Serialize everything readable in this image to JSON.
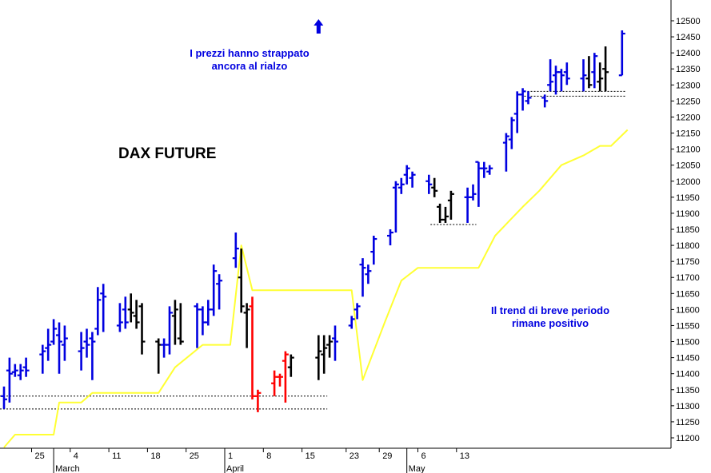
{
  "chart_data": {
    "type": "ohlc",
    "title": "DAX FUTURE",
    "annotations": [
      {
        "id": "top",
        "lines": [
          "I prezzi hanno strappato",
          "ancora al rialzo"
        ]
      },
      {
        "id": "right",
        "lines": [
          "Il trend di breve periodo",
          "rimane positivo"
        ]
      }
    ],
    "arrow": {
      "day": "2017-04-18",
      "direction": "up",
      "price": 12480
    },
    "colors": {
      "up": "#0000e0",
      "neutral": "#000000",
      "down": "#ff0000",
      "trend": "#ffff33",
      "text": "#0000e0"
    },
    "ylim": [
      11170,
      12550
    ],
    "y_ticks": [
      11200,
      11250,
      11300,
      11350,
      11400,
      11450,
      11500,
      11550,
      11600,
      11650,
      11700,
      11750,
      11800,
      11850,
      11900,
      11950,
      12000,
      12050,
      12100,
      12150,
      12200,
      12250,
      12300,
      12350,
      12400,
      12450,
      12500
    ],
    "x_ticks": [
      {
        "date": "2017-02-25",
        "label": "25"
      },
      {
        "date": "2017-03-04",
        "label": "4"
      },
      {
        "date": "2017-03-11",
        "label": "11"
      },
      {
        "date": "2017-03-18",
        "label": "18"
      },
      {
        "date": "2017-03-25",
        "label": "25"
      },
      {
        "date": "2017-04-01",
        "label": "1"
      },
      {
        "date": "2017-04-08",
        "label": "8"
      },
      {
        "date": "2017-04-15",
        "label": "15"
      },
      {
        "date": "2017-04-23",
        "label": "23"
      },
      {
        "date": "2017-04-29",
        "label": "29"
      },
      {
        "date": "2017-05-06",
        "label": "6"
      },
      {
        "date": "2017-05-13",
        "label": "13"
      }
    ],
    "month_labels": [
      {
        "date": "2017-03-01",
        "label": "March"
      },
      {
        "date": "2017-04-01",
        "label": "April"
      },
      {
        "date": "2017-05-04",
        "label": "May"
      }
    ],
    "bars": [
      {
        "d": "2017-02-20",
        "o": 11330,
        "h": 11360,
        "l": 11290,
        "c": 11320,
        "col": "up"
      },
      {
        "d": "2017-02-21",
        "o": 11410,
        "h": 11450,
        "l": 11310,
        "c": 11400,
        "col": "up"
      },
      {
        "d": "2017-02-22",
        "o": 11405,
        "h": 11430,
        "l": 11390,
        "c": 11410,
        "col": "up"
      },
      {
        "d": "2017-02-23",
        "o": 11395,
        "h": 11430,
        "l": 11380,
        "c": 11410,
        "col": "up"
      },
      {
        "d": "2017-02-24",
        "o": 11420,
        "h": 11450,
        "l": 11390,
        "c": 11410,
        "col": "up"
      },
      {
        "d": "2017-02-27",
        "o": 11460,
        "h": 11490,
        "l": 11400,
        "c": 11470,
        "col": "up"
      },
      {
        "d": "2017-02-28",
        "o": 11480,
        "h": 11540,
        "l": 11440,
        "c": 11490,
        "col": "up"
      },
      {
        "d": "2017-03-01",
        "o": 11500,
        "h": 11570,
        "l": 11490,
        "c": 11540,
        "col": "up"
      },
      {
        "d": "2017-03-02",
        "o": 11520,
        "h": 11560,
        "l": 11400,
        "c": 11500,
        "col": "up"
      },
      {
        "d": "2017-03-03",
        "o": 11490,
        "h": 11550,
        "l": 11440,
        "c": 11510,
        "col": "up"
      },
      {
        "d": "2017-03-06",
        "o": 11470,
        "h": 11530,
        "l": 11410,
        "c": 11480,
        "col": "up"
      },
      {
        "d": "2017-03-07",
        "o": 11500,
        "h": 11540,
        "l": 11450,
        "c": 11490,
        "col": "up"
      },
      {
        "d": "2017-03-08",
        "o": 11510,
        "h": 11530,
        "l": 11380,
        "c": 11500,
        "col": "up"
      },
      {
        "d": "2017-03-09",
        "o": 11540,
        "h": 11670,
        "l": 11520,
        "c": 11630,
        "col": "up"
      },
      {
        "d": "2017-03-10",
        "o": 11650,
        "h": 11680,
        "l": 11530,
        "c": 11640,
        "col": "up"
      },
      {
        "d": "2017-03-13",
        "o": 11550,
        "h": 11620,
        "l": 11530,
        "c": 11560,
        "col": "up"
      },
      {
        "d": "2017-03-14",
        "o": 11600,
        "h": 11640,
        "l": 11540,
        "c": 11560,
        "col": "up"
      },
      {
        "d": "2017-03-15",
        "o": 11600,
        "h": 11650,
        "l": 11560,
        "c": 11590,
        "col": "neutral"
      },
      {
        "d": "2017-03-16",
        "o": 11580,
        "h": 11630,
        "l": 11540,
        "c": 11560,
        "col": "neutral"
      },
      {
        "d": "2017-03-17",
        "o": 11610,
        "h": 11620,
        "l": 11460,
        "c": 11500,
        "col": "neutral"
      },
      {
        "d": "2017-03-20",
        "o": 11500,
        "h": 11510,
        "l": 11400,
        "c": 11490,
        "col": "neutral"
      },
      {
        "d": "2017-03-21",
        "o": 11490,
        "h": 11510,
        "l": 11450,
        "c": 11490,
        "col": "up"
      },
      {
        "d": "2017-03-22",
        "o": 11490,
        "h": 11610,
        "l": 11460,
        "c": 11590,
        "col": "up"
      },
      {
        "d": "2017-03-23",
        "o": 11580,
        "h": 11630,
        "l": 11490,
        "c": 11600,
        "col": "neutral"
      },
      {
        "d": "2017-03-24",
        "o": 11510,
        "h": 11620,
        "l": 11490,
        "c": 11500,
        "col": "neutral"
      },
      {
        "d": "2017-03-27",
        "o": 11610,
        "h": 11620,
        "l": 11480,
        "c": 11600,
        "col": "up"
      },
      {
        "d": "2017-03-28",
        "o": 11600,
        "h": 11610,
        "l": 11520,
        "c": 11560,
        "col": "up"
      },
      {
        "d": "2017-03-29",
        "o": 11560,
        "h": 11630,
        "l": 11550,
        "c": 11600,
        "col": "up"
      },
      {
        "d": "2017-03-30",
        "o": 11600,
        "h": 11740,
        "l": 11580,
        "c": 11720,
        "col": "up"
      },
      {
        "d": "2017-03-31",
        "o": 11680,
        "h": 11710,
        "l": 11600,
        "c": 11690,
        "col": "up"
      },
      {
        "d": "2017-04-03",
        "o": 11760,
        "h": 11840,
        "l": 11730,
        "c": 11790,
        "col": "up"
      },
      {
        "d": "2017-04-04",
        "o": 11700,
        "h": 11790,
        "l": 11590,
        "c": 11610,
        "col": "neutral"
      },
      {
        "d": "2017-04-05",
        "o": 11590,
        "h": 11620,
        "l": 11480,
        "c": 11600,
        "col": "neutral"
      },
      {
        "d": "2017-04-06",
        "o": 11610,
        "h": 11640,
        "l": 11320,
        "c": 11330,
        "col": "down"
      },
      {
        "d": "2017-04-07",
        "o": 11330,
        "h": 11350,
        "l": 11280,
        "c": 11340,
        "col": "down"
      },
      {
        "d": "2017-04-10",
        "o": 11370,
        "h": 11410,
        "l": 11330,
        "c": 11390,
        "col": "down"
      },
      {
        "d": "2017-04-11",
        "o": 11390,
        "h": 11400,
        "l": 11360,
        "c": 11390,
        "col": "down"
      },
      {
        "d": "2017-04-12",
        "o": 11440,
        "h": 11470,
        "l": 11310,
        "c": 11460,
        "col": "down"
      },
      {
        "d": "2017-04-13",
        "o": 11420,
        "h": 11460,
        "l": 11390,
        "c": 11450,
        "col": "neutral"
      },
      {
        "d": "2017-04-18",
        "o": 11450,
        "h": 11520,
        "l": 11380,
        "c": 11470,
        "col": "neutral"
      },
      {
        "d": "2017-04-19",
        "o": 11460,
        "h": 11520,
        "l": 11400,
        "c": 11480,
        "col": "neutral"
      },
      {
        "d": "2017-04-20",
        "o": 11490,
        "h": 11520,
        "l": 11450,
        "c": 11500,
        "col": "neutral"
      },
      {
        "d": "2017-04-21",
        "o": 11510,
        "h": 11550,
        "l": 11440,
        "c": 11500,
        "col": "up"
      },
      {
        "d": "2017-04-24",
        "o": 11550,
        "h": 11580,
        "l": 11540,
        "c": 11570,
        "col": "up"
      },
      {
        "d": "2017-04-25",
        "o": 11600,
        "h": 11620,
        "l": 11570,
        "c": 11610,
        "col": "up"
      },
      {
        "d": "2017-04-26",
        "o": 11740,
        "h": 11760,
        "l": 11640,
        "c": 11730,
        "col": "up"
      },
      {
        "d": "2017-04-27",
        "o": 11710,
        "h": 11740,
        "l": 11680,
        "c": 11720,
        "col": "up"
      },
      {
        "d": "2017-04-28",
        "o": 11780,
        "h": 11830,
        "l": 11740,
        "c": 11820,
        "col": "up"
      },
      {
        "d": "2017-05-01",
        "o": 11830,
        "h": 11850,
        "l": 11800,
        "c": 11840,
        "col": "up"
      },
      {
        "d": "2017-05-02",
        "o": 11980,
        "h": 12000,
        "l": 11840,
        "c": 11990,
        "col": "up"
      },
      {
        "d": "2017-05-03",
        "o": 11980,
        "h": 12010,
        "l": 11960,
        "c": 11990,
        "col": "up"
      },
      {
        "d": "2017-05-04",
        "o": 12020,
        "h": 12050,
        "l": 11990,
        "c": 12040,
        "col": "up"
      },
      {
        "d": "2017-05-05",
        "o": 12010,
        "h": 12030,
        "l": 11980,
        "c": 12020,
        "col": "up"
      },
      {
        "d": "2017-05-08",
        "o": 12000,
        "h": 12020,
        "l": 11960,
        "c": 11990,
        "col": "up"
      },
      {
        "d": "2017-05-09",
        "o": 11980,
        "h": 12010,
        "l": 11950,
        "c": 11970,
        "col": "neutral"
      },
      {
        "d": "2017-05-10",
        "o": 11920,
        "h": 11930,
        "l": 11870,
        "c": 11880,
        "col": "neutral"
      },
      {
        "d": "2017-05-11",
        "o": 11880,
        "h": 11920,
        "l": 11870,
        "c": 11890,
        "col": "neutral"
      },
      {
        "d": "2017-05-12",
        "o": 11940,
        "h": 11970,
        "l": 11880,
        "c": 11960,
        "col": "neutral"
      },
      {
        "d": "2017-05-15",
        "o": 11950,
        "h": 11980,
        "l": 11870,
        "c": 11950,
        "col": "up"
      },
      {
        "d": "2017-05-16",
        "o": 11950,
        "h": 11990,
        "l": 11940,
        "c": 11960,
        "col": "up"
      },
      {
        "d": "2017-05-17",
        "o": 12060,
        "h": 12060,
        "l": 11920,
        "c": 12040,
        "col": "up"
      },
      {
        "d": "2017-05-18",
        "o": 12040,
        "h": 12060,
        "l": 12010,
        "c": 12040,
        "col": "up"
      },
      {
        "d": "2017-05-19",
        "o": 12030,
        "h": 12050,
        "l": 12020,
        "c": 12040,
        "col": "up"
      },
      {
        "d": "2017-05-22",
        "o": 12120,
        "h": 12150,
        "l": 12030,
        "c": 12140,
        "col": "up"
      },
      {
        "d": "2017-05-23",
        "o": 12130,
        "h": 12200,
        "l": 12100,
        "c": 12190,
        "col": "up"
      },
      {
        "d": "2017-05-24",
        "o": 12210,
        "h": 12280,
        "l": 12150,
        "c": 12270,
        "col": "up"
      },
      {
        "d": "2017-05-25",
        "o": 12270,
        "h": 12290,
        "l": 12220,
        "c": 12280,
        "col": "up"
      },
      {
        "d": "2017-05-26",
        "o": 12250,
        "h": 12280,
        "l": 12240,
        "c": 12260,
        "col": "up"
      },
      {
        "d": "2017-05-29",
        "o": 12260,
        "h": 12270,
        "l": 12230,
        "c": 12250,
        "col": "up"
      },
      {
        "d": "2017-05-30",
        "o": 12300,
        "h": 12380,
        "l": 12280,
        "c": 12310,
        "col": "up"
      },
      {
        "d": "2017-05-31",
        "o": 12330,
        "h": 12360,
        "l": 12270,
        "c": 12340,
        "col": "up"
      },
      {
        "d": "2017-06-01",
        "o": 12340,
        "h": 12350,
        "l": 12280,
        "c": 12330,
        "col": "up"
      },
      {
        "d": "2017-06-02",
        "o": 12340,
        "h": 12370,
        "l": 12300,
        "c": 12320,
        "col": "up"
      },
      {
        "d": "2017-06-05",
        "o": 12320,
        "h": 12380,
        "l": 12280,
        "c": 12330,
        "col": "up"
      },
      {
        "d": "2017-06-06",
        "o": 12320,
        "h": 12390,
        "l": 12290,
        "c": 12300,
        "col": "neutral"
      },
      {
        "d": "2017-06-07",
        "o": 12340,
        "h": 12400,
        "l": 12290,
        "c": 12390,
        "col": "up"
      },
      {
        "d": "2017-06-08",
        "o": 12310,
        "h": 12370,
        "l": 12280,
        "c": 12320,
        "col": "neutral"
      },
      {
        "d": "2017-06-09",
        "o": 12350,
        "h": 12420,
        "l": 12280,
        "c": 12340,
        "col": "neutral"
      },
      {
        "d": "2017-06-12",
        "o": 12330,
        "h": 12470,
        "l": 12330,
        "c": 12460,
        "col": "up"
      }
    ],
    "trend_line": [
      {
        "d": "2017-02-20",
        "v": 11170
      },
      {
        "d": "2017-02-22",
        "v": 11210
      },
      {
        "d": "2017-03-01",
        "v": 11210
      },
      {
        "d": "2017-03-02",
        "v": 11310
      },
      {
        "d": "2017-03-06",
        "v": 11310
      },
      {
        "d": "2017-03-08",
        "v": 11340
      },
      {
        "d": "2017-03-20",
        "v": 11340
      },
      {
        "d": "2017-03-23",
        "v": 11420
      },
      {
        "d": "2017-03-28",
        "v": 11490
      },
      {
        "d": "2017-04-02",
        "v": 11490
      },
      {
        "d": "2017-04-04",
        "v": 11800
      },
      {
        "d": "2017-04-06",
        "v": 11660
      },
      {
        "d": "2017-04-24",
        "v": 11660
      },
      {
        "d": "2017-04-26",
        "v": 11380
      },
      {
        "d": "2017-04-30",
        "v": 11560
      },
      {
        "d": "2017-05-03",
        "v": 11690
      },
      {
        "d": "2017-05-06",
        "v": 11730
      },
      {
        "d": "2017-05-17",
        "v": 11730
      },
      {
        "d": "2017-05-20",
        "v": 11830
      },
      {
        "d": "2017-05-25",
        "v": 11920
      },
      {
        "d": "2017-05-28",
        "v": 11970
      },
      {
        "d": "2017-06-01",
        "v": 12050
      },
      {
        "d": "2017-06-05",
        "v": 12080
      },
      {
        "d": "2017-06-08",
        "v": 12110
      },
      {
        "d": "2017-06-10",
        "v": 12110
      },
      {
        "d": "2017-06-13",
        "v": 12160
      }
    ],
    "support_levels": [
      {
        "from": "2017-02-20",
        "to": "2017-04-19",
        "v": 11330
      },
      {
        "from": "2017-02-20",
        "to": "2017-04-19",
        "v": 11290
      },
      {
        "from": "2017-05-09",
        "to": "2017-05-16",
        "v": 11865
      },
      {
        "from": "2017-05-26",
        "to": "2017-06-12",
        "v": 12280
      },
      {
        "from": "2017-05-26",
        "to": "2017-06-12",
        "v": 12265
      }
    ]
  }
}
